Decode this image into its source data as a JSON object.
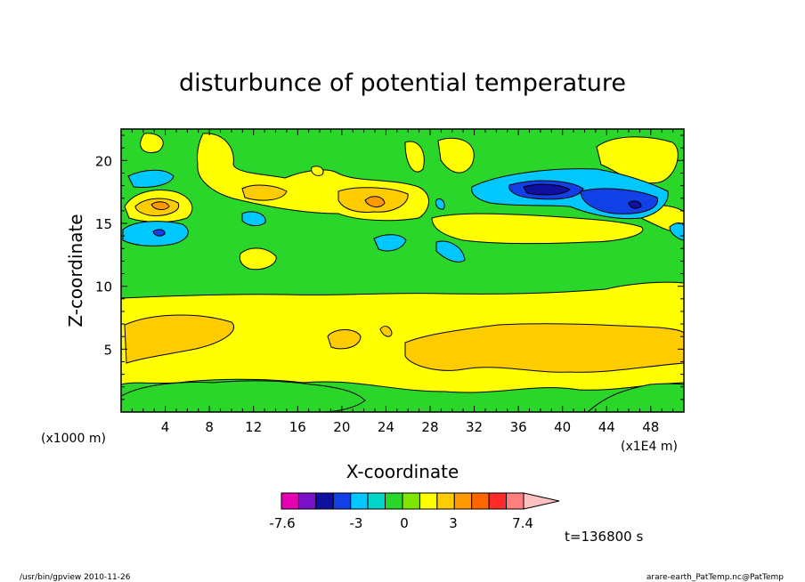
{
  "chart_data": {
    "type": "heatmap",
    "title": "disturbunce of potential temperature",
    "xlabel": "X-coordinate",
    "ylabel": "Z-coordinate",
    "x_unit_left": "(x1000 m)",
    "x_unit_right": "(x1E4 m)",
    "xlim": [
      0,
      51
    ],
    "ylim": [
      0,
      22.5
    ],
    "x_ticks": [
      4,
      8,
      12,
      16,
      20,
      24,
      28,
      32,
      36,
      40,
      44,
      48
    ],
    "y_ticks": [
      5,
      10,
      15,
      20
    ],
    "colorbar": {
      "colors": [
        "#e600b4",
        "#7a10c8",
        "#1010a0",
        "#1040e6",
        "#00c8ff",
        "#00d7c8",
        "#2bd62b",
        "#7fe600",
        "#ffff00",
        "#ffcc00",
        "#ff9900",
        "#ff6600",
        "#ff2a2a",
        "#ff7f7f",
        "#ffc0c0"
      ],
      "tick_labels": [
        "-7.6",
        "-3",
        "0",
        "3",
        "7.4"
      ]
    },
    "time_label": "t=136800 s"
  },
  "footer": {
    "left": "/usr/bin/gpview 2010-11-26",
    "right": "arare-earth_PatTemp.nc@PatTemp"
  }
}
